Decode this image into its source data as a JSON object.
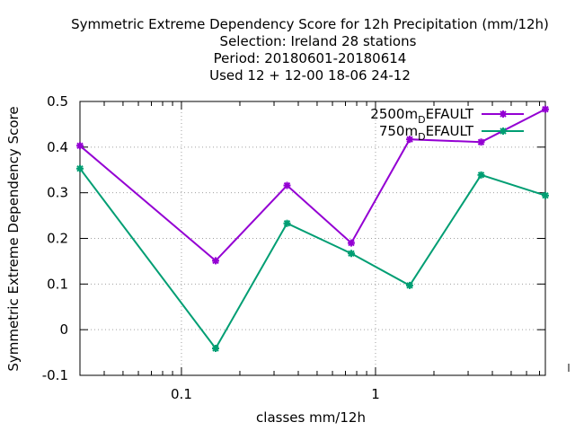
{
  "chart_data": {
    "type": "line",
    "title_lines": [
      "Symmetric Extreme Dependency Score  for 12h Precipitation (mm/12h)",
      "Selection: Ireland     28 stations",
      "Period: 20180601-20180614",
      "Used  12 + 12-00 18-06 24-12"
    ],
    "xlabel": "classes mm/12h",
    "ylabel": "Symmetric Extreme Dependency Score",
    "xscale": "log",
    "xlim": [
      0.03,
      7.5
    ],
    "ylim": [
      -0.1,
      0.5
    ],
    "grid": true,
    "legend_position": "top-right",
    "x_ticks": [
      {
        "value": 0.1,
        "label": "0.1"
      },
      {
        "value": 1,
        "label": "1"
      }
    ],
    "y_ticks": [
      {
        "value": 0.5,
        "label": "0.5"
      },
      {
        "value": 0.4,
        "label": "0.4"
      },
      {
        "value": 0.3,
        "label": "0.3"
      },
      {
        "value": 0.2,
        "label": "0.2"
      },
      {
        "value": 0.1,
        "label": "0.1"
      },
      {
        "value": 0.0,
        "label": "0"
      },
      {
        "value": -0.1,
        "label": "-0.1"
      }
    ],
    "x": [
      0.03,
      0.15,
      0.35,
      0.75,
      1.5,
      3.5,
      7.5
    ],
    "series": [
      {
        "name": "2500m_DEFAULT",
        "legend_main": "2500m",
        "legend_sub": "D",
        "legend_rest": "EFAULT",
        "color": "#9400d3",
        "values": [
          0.403,
          0.151,
          0.316,
          0.19,
          0.417,
          0.411,
          0.483
        ]
      },
      {
        "name": "750m_DEFAULT",
        "legend_main": "750m",
        "legend_sub": "D",
        "legend_rest": "EFAULT",
        "color": "#009e73",
        "values": [
          0.353,
          -0.041,
          0.233,
          0.167,
          0.097,
          0.339,
          0.294
        ]
      }
    ]
  }
}
